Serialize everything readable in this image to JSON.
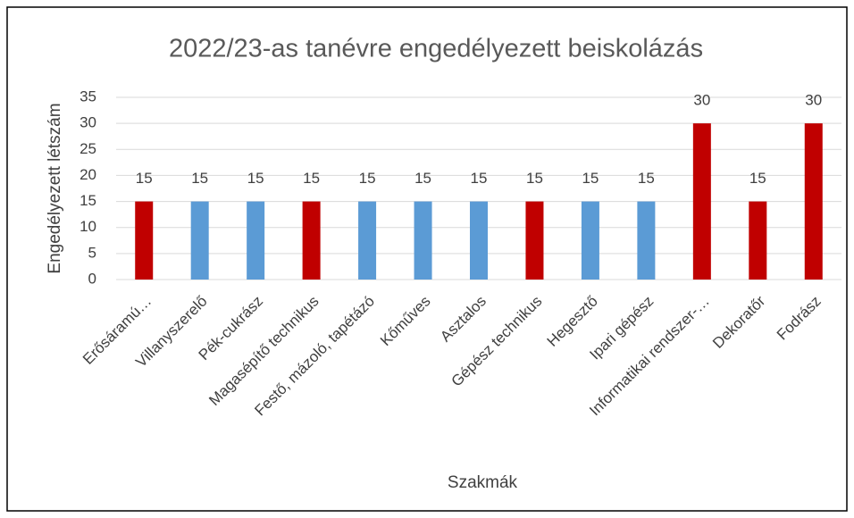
{
  "chart_data": {
    "type": "bar",
    "title": "2022/23-as tanévre engedélyezett beiskolázás",
    "x_label": "Szakmák",
    "y_label": "Engedélyezett létszám",
    "categories": [
      "Erősáramú…",
      "Villanyszerelő",
      "Pék-cukrász",
      "Magasépítő technikus",
      "Festő, mázoló, tapétázó",
      "Kőműves",
      "Asztalos",
      "Gépész technikus",
      "Hegesztő",
      "Ipari gépész",
      "Informatikai rendszer-…",
      "Dekoratőr",
      "Fodrász"
    ],
    "values": [
      15,
      15,
      15,
      15,
      15,
      15,
      15,
      15,
      15,
      15,
      30,
      15,
      30
    ],
    "colors": [
      "#c00000",
      "#5b9bd5",
      "#5b9bd5",
      "#c00000",
      "#5b9bd5",
      "#5b9bd5",
      "#5b9bd5",
      "#c00000",
      "#5b9bd5",
      "#5b9bd5",
      "#c00000",
      "#c00000",
      "#c00000"
    ],
    "ylim": [
      0,
      35
    ],
    "yticks": [
      0,
      5,
      10,
      15,
      20,
      25,
      30,
      35
    ],
    "grid": true
  }
}
